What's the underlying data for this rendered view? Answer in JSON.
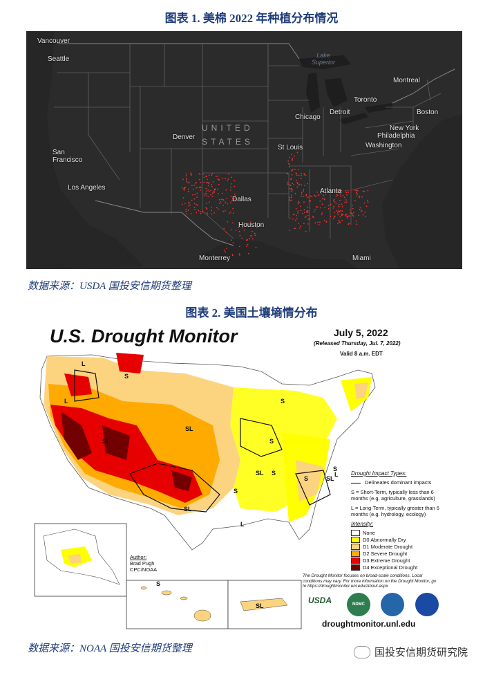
{
  "figure1": {
    "title": "图表 1.  美棉 2022 年种植分布情况",
    "source": "数据来源：USDA  国投安信期货整理",
    "country_label": [
      "UNITED",
      "STATES"
    ],
    "lake_label": [
      "Lake",
      "Superior"
    ],
    "cities": [
      "Vancouver",
      "Seattle",
      "San",
      "Francisco",
      "Los Angeles",
      "Denver",
      "Dallas",
      "Houston",
      "Monterrey",
      "St Louis",
      "Chicago",
      "Detroit",
      "Toronto",
      "Montreal",
      "Boston",
      "New York",
      "Philadelphia",
      "Washington",
      "Atlanta",
      "Miami"
    ],
    "colors": {
      "background": "#2b2b2b",
      "cotton": "#e8322c",
      "borders": "#777777"
    }
  },
  "figure2": {
    "title": "图表 2.  美国土壤墒情分布",
    "source": "数据来源：NOAA  国投安信期货整理",
    "map_title": "U.S. Drought Monitor",
    "date": "July 5, 2022",
    "released": "(Released Thursday, Jul. 7, 2022)",
    "valid": "Valid 8 a.m. EDT",
    "impact_heading": "Drought Impact Types:",
    "impact_line": "Delineates dominant impacts",
    "impact_s": "S = Short-Term, typically less than 6 months (e.g. agriculture, grasslands)",
    "impact_l": "L = Long-Term, typically greater than 6 months (e.g. hydrology, ecology)",
    "intensity_heading": "Intensity:",
    "intensity": [
      {
        "label": "None",
        "color": "#ffffff"
      },
      {
        "label": "D0 Abnormally Dry",
        "color": "#ffff00"
      },
      {
        "label": "D1 Moderate Drought",
        "color": "#fcd37f"
      },
      {
        "label": "D2 Severe Drought",
        "color": "#ffaa00"
      },
      {
        "label": "D3 Extreme Drought",
        "color": "#e60000"
      },
      {
        "label": "D4 Exceptional Drought",
        "color": "#730000"
      }
    ],
    "author_heading": "Author:",
    "author_name": "Brad Pugh",
    "author_org": "CPC/NOAA",
    "note": "The Drought Monitor focuses on broad-scale conditions. Local conditions may vary. For more information on the Drought Monitor, go to https://droughtmonitor.unl.edu/About.aspx",
    "url": "droughtmonitor.unl.edu",
    "logos": [
      "USDA",
      "NDMC"
    ],
    "region_labels": [
      "L",
      "L",
      "S",
      "SL",
      "SL",
      "SL",
      "S",
      "S",
      "S",
      "SL",
      "S",
      "SL",
      "S",
      "L",
      "L",
      "S",
      "SL",
      "S"
    ]
  },
  "watermark": "国投安信期货研究院"
}
